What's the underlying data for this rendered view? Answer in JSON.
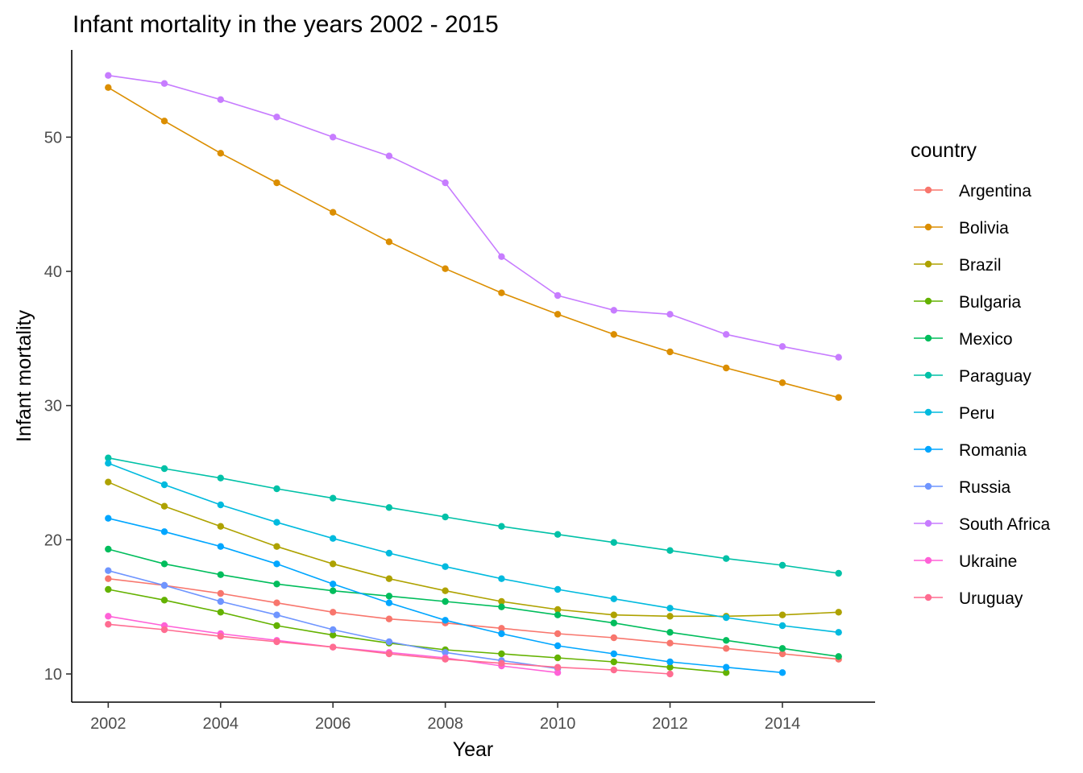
{
  "chart_data": {
    "type": "line",
    "title": "Infant mortality in the years 2002 - 2015",
    "xlabel": "Year",
    "ylabel": "Infant mortality",
    "xlim": [
      2001.35,
      2015.65
    ],
    "ylim": [
      7.9,
      56.5
    ],
    "xticks": [
      2002,
      2004,
      2006,
      2008,
      2010,
      2012,
      2014
    ],
    "yticks": [
      10,
      20,
      30,
      40,
      50
    ],
    "grid": false,
    "legend": {
      "title": "country",
      "placement": "right"
    },
    "x": [
      2002,
      2003,
      2004,
      2005,
      2006,
      2007,
      2008,
      2009,
      2010,
      2011,
      2012,
      2013,
      2014,
      2015
    ],
    "series": [
      {
        "name": "Argentina",
        "color": "#F8766D",
        "values": [
          17.1,
          16.6,
          16.0,
          15.3,
          14.6,
          14.1,
          13.8,
          13.4,
          13.0,
          12.7,
          12.3,
          11.9,
          11.5,
          11.1
        ]
      },
      {
        "name": "Bolivia",
        "color": "#DB8E00",
        "values": [
          53.7,
          51.2,
          48.8,
          46.6,
          44.4,
          42.2,
          40.2,
          38.4,
          36.8,
          35.3,
          34.0,
          32.8,
          31.7,
          30.6
        ]
      },
      {
        "name": "Brazil",
        "color": "#AEA200",
        "values": [
          24.3,
          22.5,
          21.0,
          19.5,
          18.2,
          17.1,
          16.2,
          15.4,
          14.8,
          14.4,
          14.3,
          14.3,
          14.4,
          14.6
        ]
      },
      {
        "name": "Bulgaria",
        "color": "#64B200",
        "values": [
          16.3,
          15.5,
          14.6,
          13.6,
          12.9,
          12.3,
          11.8,
          11.5,
          11.2,
          10.9,
          10.5,
          10.1,
          null,
          null
        ]
      },
      {
        "name": "Mexico",
        "color": "#00BD5C",
        "values": [
          19.3,
          18.2,
          17.4,
          16.7,
          16.2,
          15.8,
          15.4,
          15.0,
          14.4,
          13.8,
          13.1,
          12.5,
          11.9,
          11.3
        ]
      },
      {
        "name": "Paraguay",
        "color": "#00C1A7",
        "values": [
          26.1,
          25.3,
          24.6,
          23.8,
          23.1,
          22.4,
          21.7,
          21.0,
          20.4,
          19.8,
          19.2,
          18.6,
          18.1,
          17.5
        ]
      },
      {
        "name": "Peru",
        "color": "#00BADE",
        "values": [
          25.7,
          24.1,
          22.6,
          21.3,
          20.1,
          19.0,
          18.0,
          17.1,
          16.3,
          15.6,
          14.9,
          14.2,
          13.6,
          13.1
        ]
      },
      {
        "name": "Romania",
        "color": "#00A6FF",
        "values": [
          21.6,
          20.6,
          19.5,
          18.2,
          16.7,
          15.3,
          14.0,
          13.0,
          12.1,
          11.5,
          10.9,
          10.5,
          10.1,
          null
        ]
      },
      {
        "name": "Russia",
        "color": "#6F95FF",
        "values": [
          17.7,
          16.6,
          15.4,
          14.4,
          13.3,
          12.4,
          11.6,
          11.0,
          10.4,
          null,
          null,
          null,
          null,
          null
        ]
      },
      {
        "name": "South Africa",
        "color": "#C77CFF",
        "values": [
          54.6,
          54.0,
          52.8,
          51.5,
          50.0,
          48.6,
          46.6,
          41.1,
          38.2,
          37.1,
          36.8,
          35.3,
          34.4,
          33.6
        ]
      },
      {
        "name": "Ukraine",
        "color": "#FF61D7",
        "values": [
          14.3,
          13.6,
          13.0,
          12.5,
          12.0,
          11.6,
          11.2,
          10.6,
          10.1,
          null,
          null,
          null,
          null,
          null
        ]
      },
      {
        "name": "Uruguay",
        "color": "#FF6C91",
        "values": [
          13.7,
          13.3,
          12.8,
          12.4,
          12.0,
          11.5,
          11.1,
          10.8,
          10.5,
          10.3,
          10.0,
          null,
          null,
          null
        ]
      }
    ]
  }
}
